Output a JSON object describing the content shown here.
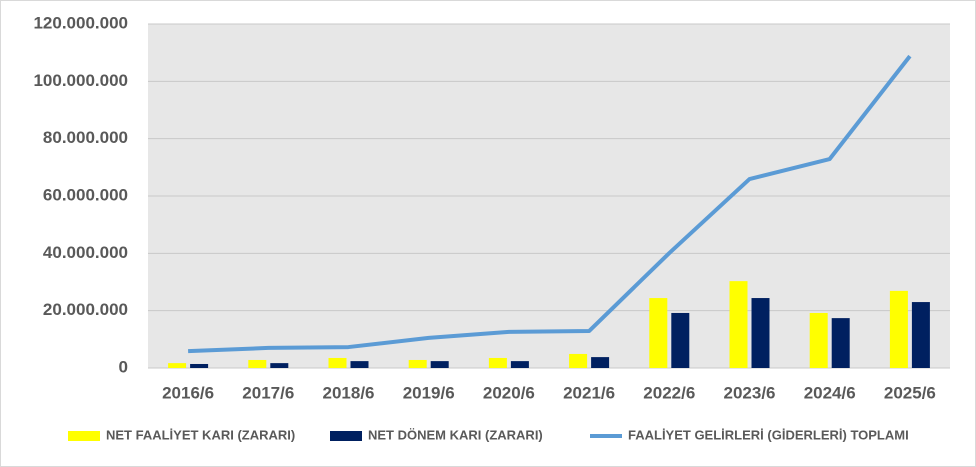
{
  "chart_data": {
    "type": "bar",
    "categories": [
      "2016/6",
      "2017/6",
      "2018/6",
      "2019/6",
      "2020/6",
      "2021/6",
      "2022/6",
      "2023/6",
      "2024/6",
      "2025/6"
    ],
    "series": [
      {
        "name": "NET FAALİYET KARI (ZARARI)",
        "type": "bar",
        "color": "#ffff00",
        "values": [
          1700000,
          2800000,
          3500000,
          2800000,
          3500000,
          4900000,
          24400000,
          30300000,
          19200000,
          26900000
        ]
      },
      {
        "name": "NET DÖNEM KARI (ZARARI)",
        "type": "bar",
        "color": "#002060",
        "values": [
          1400000,
          1700000,
          2400000,
          2400000,
          2400000,
          3800000,
          19200000,
          24400000,
          17400000,
          23000000
        ]
      },
      {
        "name": "FAALİYET GELİRLERİ (GİDERLERİ) TOPLAMI",
        "type": "line",
        "color": "#5b9bd5",
        "values": [
          5900000,
          7000000,
          7300000,
          10500000,
          12600000,
          12900000,
          40100000,
          65900000,
          72900000,
          108800000
        ]
      }
    ],
    "ylim": [
      0,
      120000000
    ],
    "yticks": [
      0,
      {
        "value": 20000000,
        "label": "20.000.000"
      },
      {
        "value": 40000000,
        "label": "40.000.000"
      },
      {
        "value": 60000000,
        "label": "60.000.000"
      },
      {
        "value": 80000000,
        "label": "80.000.000"
      },
      {
        "value": 100000000,
        "label": "100.000.000"
      },
      {
        "value": 120000000,
        "label": "120.000.000"
      }
    ],
    "grid": true,
    "legend": "bottom"
  }
}
